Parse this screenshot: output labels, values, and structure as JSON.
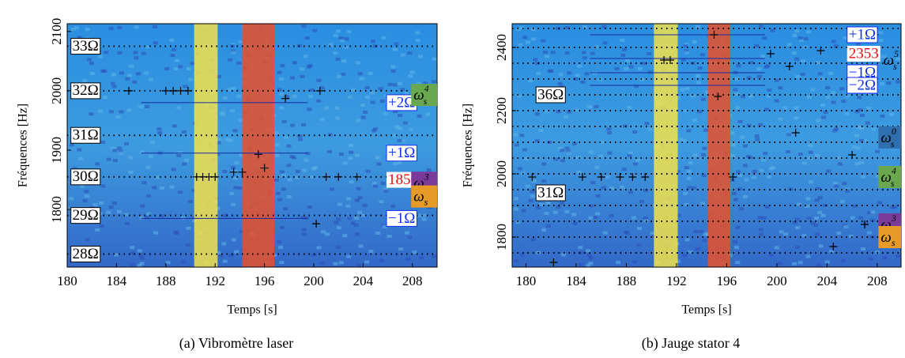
{
  "chart_data": [
    {
      "type": "spectrogram",
      "caption": "(a) Vibromètre laser",
      "xlabel": "Temps [s]",
      "ylabel": "Fréquences [Hz]",
      "xlim": [
        180,
        210
      ],
      "ylim": [
        1703,
        2113
      ],
      "xticks": [
        180,
        184,
        188,
        192,
        196,
        200,
        204,
        208
      ],
      "yticks": [
        1800,
        1900,
        2000,
        2100
      ],
      "bands": [
        {
          "x": [
            190.3,
            192.2
          ],
          "color": "#f3e24a"
        },
        {
          "x": [
            194.2,
            196.8
          ],
          "color": "#e8502a"
        }
      ],
      "dotted_lines": [
        2075,
        2000,
        1925,
        1855,
        1790,
        1725
      ],
      "solid_lines": [
        1980,
        1895,
        1785
      ],
      "labels": [
        {
          "text": "33Ω",
          "style": "box",
          "x": 180.3,
          "y": 2075
        },
        {
          "text": "32Ω",
          "style": "box",
          "x": 180.3,
          "y": 2000
        },
        {
          "text": "31Ω",
          "style": "box",
          "x": 180.3,
          "y": 1925
        },
        {
          "text": "30Ω",
          "style": "box",
          "x": 180.3,
          "y": 1855
        },
        {
          "text": "29Ω",
          "style": "box",
          "x": 180.3,
          "y": 1790
        },
        {
          "text": "28Ω",
          "style": "box",
          "x": 180.3,
          "y": 1725
        },
        {
          "text": "+2Ω",
          "style": "blue",
          "x": 205.9,
          "y": 1980
        },
        {
          "text": "+1Ω",
          "style": "blue",
          "x": 205.9,
          "y": 1895
        },
        {
          "text": "1850",
          "style": "red",
          "x": 205.9,
          "y": 1850
        },
        {
          "text": "−1Ω",
          "style": "blue",
          "x": 205.9,
          "y": 1785
        }
      ],
      "omegas": [
        {
          "text": "ω",
          "sub": "s",
          "sup": "4",
          "x": 207.9,
          "y": 1993,
          "fill": "#6aa84f"
        },
        {
          "text": "ω",
          "sub": "s",
          "sup": "3",
          "x": 207.9,
          "y": 1845,
          "fill": "#7a3a9a"
        },
        {
          "text": "ω",
          "sub": "s",
          "sup": "",
          "x": 207.9,
          "y": 1822,
          "fill": "#e69a28"
        }
      ],
      "markers": {
        "x": [
          185,
          188,
          188.6,
          189.2,
          189.8,
          190.5,
          191,
          191.5,
          192,
          193.5,
          194.2,
          195.5,
          196,
          197.7,
          200.5,
          201,
          202,
          203.5,
          200.2
        ],
        "y": [
          2000,
          2000,
          2000,
          2000,
          2000,
          1855,
          1855,
          1855,
          1855,
          1863,
          1863,
          1893,
          1870,
          1987,
          2000,
          1855,
          1855,
          1855,
          1776
        ]
      }
    },
    {
      "type": "spectrogram",
      "caption": "(b) Jauge stator 4",
      "xlabel": "Temps [s]",
      "ylabel": "Fréquences [Hz]",
      "xlim": [
        178.9,
        209.9
      ],
      "ylim": [
        1705,
        2475
      ],
      "xticks": [
        180,
        184,
        188,
        192,
        196,
        200,
        204,
        208
      ],
      "yticks": [
        1800,
        2000,
        2200,
        2400
      ],
      "bands": [
        {
          "x": [
            190.2,
            192.1
          ],
          "color": "#f3e24a"
        },
        {
          "x": [
            194.5,
            196.3
          ],
          "color": "#e8502a"
        }
      ],
      "dotted_lines": [
        2460,
        2400,
        2350,
        2300,
        2250,
        2200,
        2150,
        2100,
        2050,
        2000,
        1950,
        1900,
        1850,
        1800,
        1750
      ],
      "solid_lines": [
        2440,
        2365,
        2320,
        2280
      ],
      "labels": [
        {
          "text": "+1Ω",
          "style": "blue",
          "x": 205.6,
          "y": 2440
        },
        {
          "text": "2353",
          "style": "red",
          "x": 205.6,
          "y": 2380
        },
        {
          "text": "−1Ω",
          "style": "blue",
          "x": 205.6,
          "y": 2320
        },
        {
          "text": "−2Ω",
          "style": "blue",
          "x": 205.6,
          "y": 2280
        },
        {
          "text": "36Ω",
          "style": "box",
          "x": 180.8,
          "y": 2250
        },
        {
          "text": "31Ω",
          "style": "box",
          "x": 180.8,
          "y": 1940
        }
      ],
      "omegas": [
        {
          "text": "ω",
          "sub": "s",
          "sup": "5",
          "x": 208.3,
          "y": 2360,
          "fill": "none"
        },
        {
          "text": "ω",
          "sub": "s",
          "sup": "0",
          "x": 208.1,
          "y": 2115,
          "fill": "#2f6fb0"
        },
        {
          "text": "ω",
          "sub": "s",
          "sup": "4",
          "x": 208.1,
          "y": 1990,
          "fill": "#6aa84f"
        },
        {
          "text": "ω",
          "sub": "s",
          "sup": "3",
          "x": 208.1,
          "y": 1840,
          "fill": "#7a3a9a"
        },
        {
          "text": "ω",
          "sub": "s",
          "sup": "",
          "x": 208.1,
          "y": 1800,
          "fill": "#e69a28"
        }
      ],
      "markers": {
        "x": [
          180.5,
          184.5,
          186,
          187.5,
          188.5,
          189.5,
          191,
          195,
          195.3,
          196.5,
          199.5,
          201.5,
          203.5,
          206,
          207.8,
          182.2,
          191.5,
          201,
          204.5,
          207
        ],
        "y": [
          1990,
          1990,
          1990,
          1990,
          1990,
          1990,
          2360,
          2440,
          2245,
          1990,
          2380,
          2130,
          2390,
          2060,
          2440,
          1720,
          2360,
          2340,
          1770,
          1840
        ]
      }
    }
  ]
}
